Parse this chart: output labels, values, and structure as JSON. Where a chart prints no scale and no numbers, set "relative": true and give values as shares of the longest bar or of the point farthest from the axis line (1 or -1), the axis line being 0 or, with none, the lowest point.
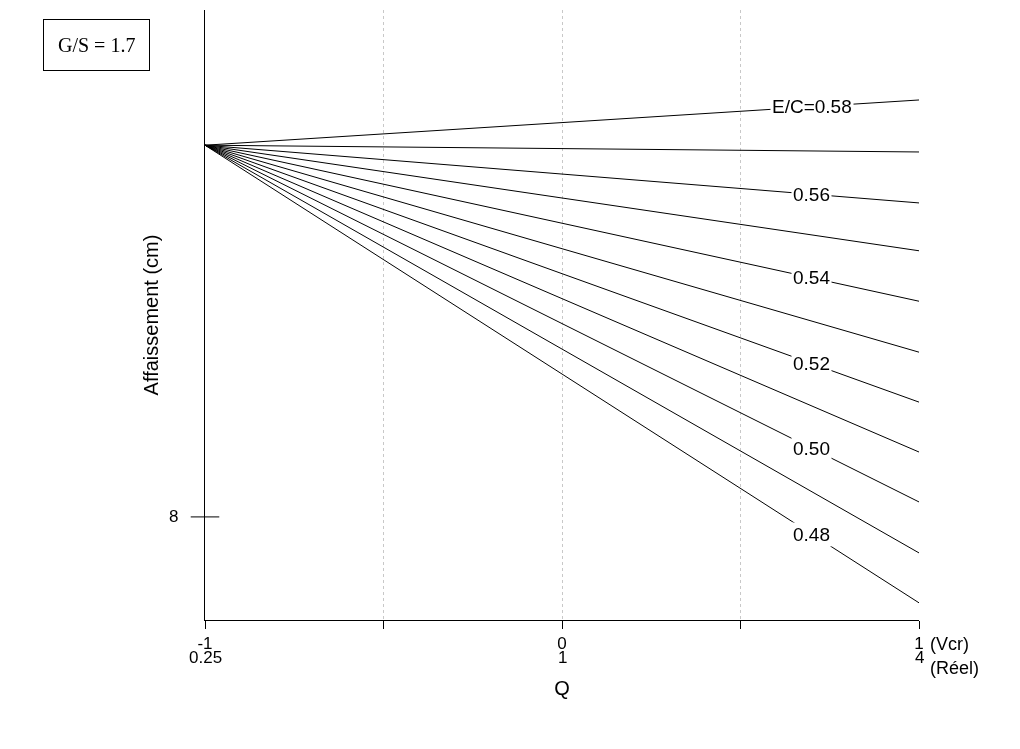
{
  "chart_data": {
    "type": "line",
    "relative": true,
    "xlabel": "Q",
    "ylabel": "Affaissement (cm)",
    "x": [
      -1,
      1
    ],
    "xlim": [
      -1,
      1
    ],
    "xticks": [
      -1,
      {
        "value": -0.5,
        "label": null
      },
      0,
      {
        "value": 0.5,
        "label": null
      },
      1
    ],
    "grid": "x",
    "legend": false,
    "marker": "none",
    "line_style": "solid",
    "annotations": [
      "G/S = 1.7",
      "(Vcr)",
      "(Réel)",
      "8",
      "0.25",
      "1",
      "4"
    ],
    "series": [
      {
        "name": "E/C=0.58",
        "color": "#000000",
        "values": [
          0.913,
          1.0
        ]
      },
      {
        "color": "#000000",
        "values": [
          0.913,
          0.9
        ]
      },
      {
        "name": "0.56",
        "color": "#000000",
        "values": [
          0.913,
          0.802
        ]
      },
      {
        "color": "#000000",
        "values": [
          0.913,
          0.71
        ]
      },
      {
        "name": "0.54",
        "color": "#000000",
        "values": [
          0.913,
          0.613
        ]
      },
      {
        "color": "#000000",
        "values": [
          0.913,
          0.515
        ]
      },
      {
        "name": "0.52",
        "color": "#000000",
        "values": [
          0.913,
          0.419
        ]
      },
      {
        "color": "#000000",
        "values": [
          0.913,
          0.323
        ]
      },
      {
        "name": "0.50",
        "color": "#000000",
        "values": [
          0.913,
          0.227
        ]
      },
      {
        "color": "#000000",
        "values": [
          0.913,
          0.129
        ]
      },
      {
        "name": "0.48",
        "color": "#000000",
        "values": [
          0.913,
          0.033
        ]
      }
    ]
  }
}
